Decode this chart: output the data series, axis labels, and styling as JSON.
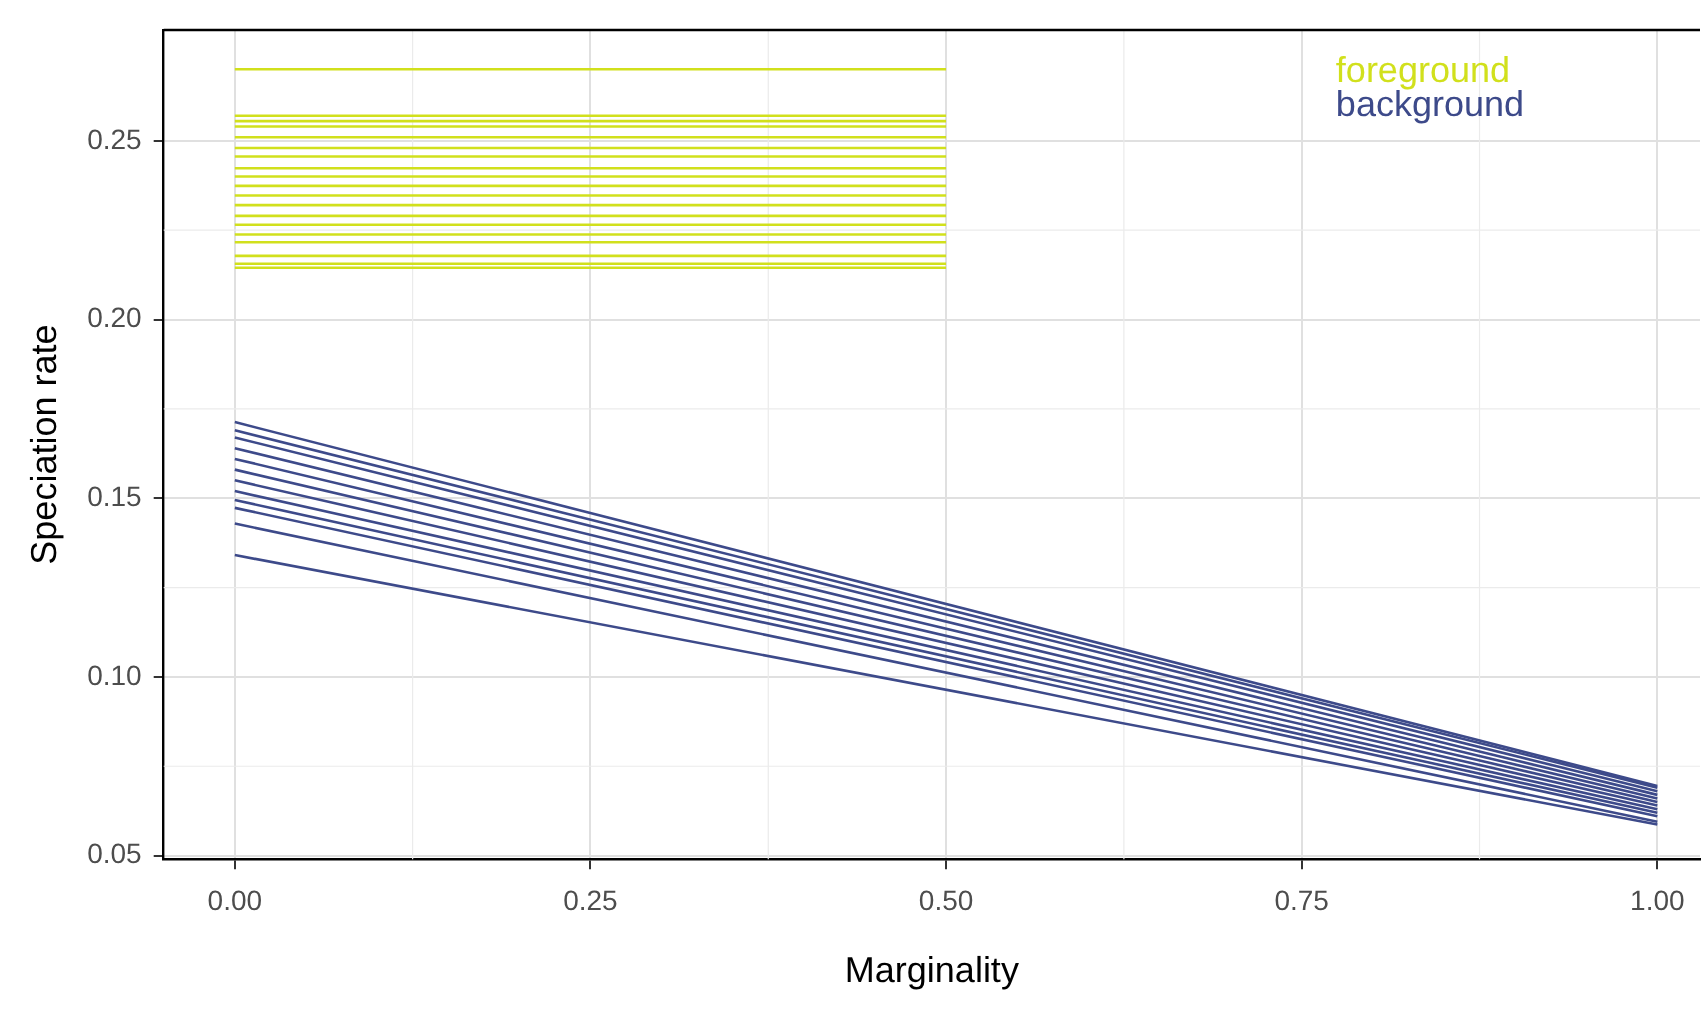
{
  "chart_data": {
    "type": "line",
    "xlabel": "Marginality",
    "ylabel": "Speciation rate",
    "xlim": [
      -0.05,
      1.03
    ],
    "ylim": [
      0.049,
      0.281
    ],
    "xticks": [
      {
        "value": 0,
        "label": "0.00"
      },
      {
        "value": 0.25,
        "label": "0.25"
      },
      {
        "value": 0.5,
        "label": "0.50"
      },
      {
        "value": 0.75,
        "label": "0.75"
      },
      {
        "value": 1,
        "label": "1.00"
      }
    ],
    "yticks": [
      0.05,
      {
        "value": 0.1,
        "label": "0.10"
      },
      0.15,
      {
        "value": 0.2,
        "label": "0.20"
      },
      0.25
    ],
    "grid": true,
    "legend": "top right",
    "marker": "none",
    "line_style": "solid",
    "series": [
      {
        "name": "foreground",
        "color": "#d1e01c",
        "x": [
          0,
          0.5
        ],
        "values": [
          0.27,
          0.27
        ]
      },
      {
        "color": "#d1e01c",
        "x": [
          0,
          0.5
        ],
        "values": [
          0.257,
          0.257
        ]
      },
      {
        "color": "#d1e01c",
        "x": [
          0,
          0.5
        ],
        "values": [
          0.2555,
          0.2555
        ]
      },
      {
        "color": "#d1e01c",
        "x": [
          0,
          0.5
        ],
        "values": [
          0.254,
          0.254
        ]
      },
      {
        "color": "#d1e01c",
        "x": [
          0,
          0.5
        ],
        "values": [
          0.251,
          0.251
        ]
      },
      {
        "color": "#d1e01c",
        "x": [
          0,
          0.5
        ],
        "values": [
          0.248,
          0.248
        ]
      },
      {
        "color": "#d1e01c",
        "x": [
          0,
          0.5
        ],
        "values": [
          0.2456,
          0.2456
        ]
      },
      {
        "color": "#d1e01c",
        "x": [
          0,
          0.5
        ],
        "values": [
          0.2423,
          0.2423
        ]
      },
      {
        "color": "#d1e01c",
        "x": [
          0,
          0.5
        ],
        "values": [
          0.24,
          0.24
        ]
      },
      {
        "color": "#d1e01c",
        "x": [
          0,
          0.5
        ],
        "values": [
          0.2374,
          0.2374
        ]
      },
      {
        "color": "#d1e01c",
        "x": [
          0,
          0.5
        ],
        "values": [
          0.2347,
          0.2347
        ]
      },
      {
        "color": "#d1e01c",
        "x": [
          0,
          0.5
        ],
        "values": [
          0.232,
          0.232
        ]
      },
      {
        "color": "#d1e01c",
        "x": [
          0,
          0.5
        ],
        "values": [
          0.229,
          0.229
        ]
      },
      {
        "color": "#d1e01c",
        "x": [
          0,
          0.5
        ],
        "values": [
          0.2265,
          0.2265
        ]
      },
      {
        "color": "#d1e01c",
        "x": [
          0,
          0.5
        ],
        "values": [
          0.2238,
          0.2238
        ]
      },
      {
        "color": "#d1e01c",
        "x": [
          0,
          0.5
        ],
        "values": [
          0.2216,
          0.2216
        ]
      },
      {
        "color": "#d1e01c",
        "x": [
          0,
          0.5
        ],
        "values": [
          0.2178,
          0.2178
        ]
      },
      {
        "color": "#d1e01c",
        "x": [
          0,
          0.5
        ],
        "values": [
          0.2156,
          0.2156
        ]
      },
      {
        "color": "#d1e01c",
        "x": [
          0,
          0.5
        ],
        "values": [
          0.2145,
          0.2145
        ]
      },
      {
        "name": "background",
        "color": "#3d4a8a",
        "x": [
          0,
          1
        ],
        "values": [
          0.1713,
          0.0695
        ]
      },
      {
        "color": "#3d4a8a",
        "x": [
          0,
          1
        ],
        "values": [
          0.169,
          0.069
        ]
      },
      {
        "color": "#3d4a8a",
        "x": [
          0,
          1
        ],
        "values": [
          0.167,
          0.068
        ]
      },
      {
        "color": "#3d4a8a",
        "x": [
          0,
          1
        ],
        "values": [
          0.164,
          0.067
        ]
      },
      {
        "color": "#3d4a8a",
        "x": [
          0,
          1
        ],
        "values": [
          0.161,
          0.066
        ]
      },
      {
        "color": "#3d4a8a",
        "x": [
          0,
          1
        ],
        "values": [
          0.158,
          0.065
        ]
      },
      {
        "color": "#3d4a8a",
        "x": [
          0,
          1
        ],
        "values": [
          0.155,
          0.064
        ]
      },
      {
        "color": "#3d4a8a",
        "x": [
          0,
          1
        ],
        "values": [
          0.152,
          0.063
        ]
      },
      {
        "color": "#3d4a8a",
        "x": [
          0,
          1
        ],
        "values": [
          0.1495,
          0.062
        ]
      },
      {
        "color": "#3d4a8a",
        "x": [
          0,
          1
        ],
        "values": [
          0.1473,
          0.061
        ]
      },
      {
        "color": "#3d4a8a",
        "x": [
          0,
          1
        ],
        "values": [
          0.1429,
          0.0595
        ]
      },
      {
        "color": "#3d4a8a",
        "x": [
          0,
          1
        ],
        "values": [
          0.1341,
          0.0587
        ]
      }
    ]
  }
}
